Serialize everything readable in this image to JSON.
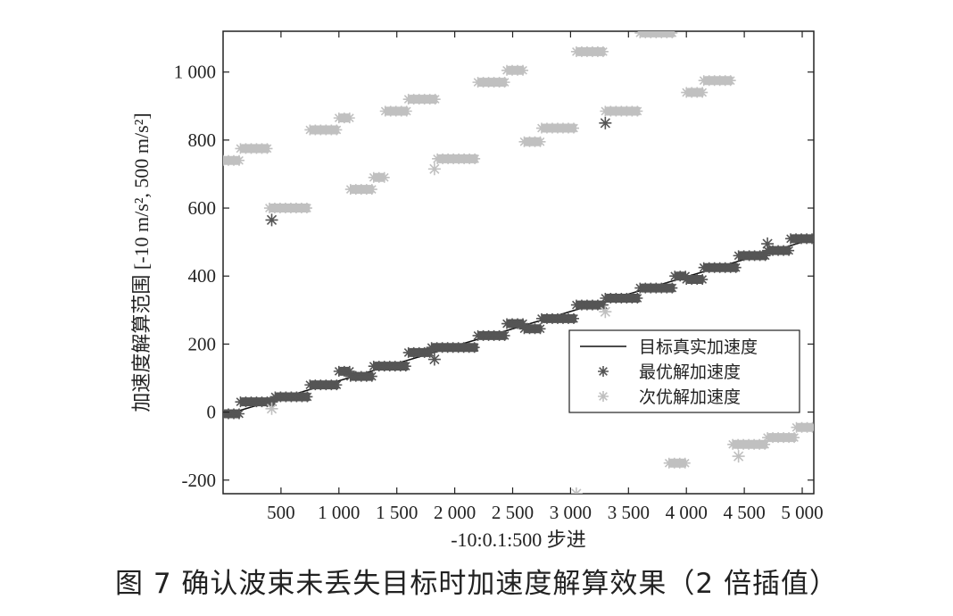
{
  "caption": "图 7 确认波束未丢失目标时加速度解算效果（2 倍插值）",
  "chart_data": {
    "type": "scatter",
    "xlabel": "-10:0.1:500 步进",
    "ylabel": "加速度解算范围 [-10 m/s², 500 m/s²]",
    "xlim": [
      0,
      5100
    ],
    "ylim": [
      -240,
      1120
    ],
    "xticks": [
      500,
      1000,
      1500,
      2000,
      2500,
      3000,
      3500,
      4000,
      4500,
      5000
    ],
    "xtick_labels": [
      "500",
      "1 000",
      "1 500",
      "2 000",
      "2 500",
      "3 000",
      "3 500",
      "4 000",
      "4 500",
      "5 000"
    ],
    "yticks": [
      -200,
      0,
      200,
      400,
      600,
      800,
      1000
    ],
    "ytick_labels": [
      "-200",
      "0",
      "200",
      "400",
      "600",
      "800",
      "1 000"
    ],
    "grid": false,
    "legend_position": "center-right",
    "series": [
      {
        "name": "目标真实加速度",
        "style": "line",
        "color": "#111111",
        "x": [
          0,
          5100
        ],
        "y": [
          -10,
          510
        ]
      },
      {
        "name": "最优解加速度",
        "style": "star",
        "color": "#555555",
        "segments": [
          {
            "x0": 0,
            "x1": 150,
            "y": -5
          },
          {
            "x0": 150,
            "x1": 450,
            "y": 30
          },
          {
            "x0": 450,
            "x1": 750,
            "y": 45
          },
          {
            "x0": 750,
            "x1": 1000,
            "y": 80
          },
          {
            "x0": 1000,
            "x1": 1100,
            "y": 120
          },
          {
            "x0": 1100,
            "x1": 1300,
            "y": 105
          },
          {
            "x0": 1300,
            "x1": 1600,
            "y": 135
          },
          {
            "x0": 1600,
            "x1": 1800,
            "y": 175
          },
          {
            "x0": 1800,
            "x1": 2200,
            "y": 190
          },
          {
            "x0": 2200,
            "x1": 2450,
            "y": 225
          },
          {
            "x0": 2450,
            "x1": 2600,
            "y": 260
          },
          {
            "x0": 2600,
            "x1": 2750,
            "y": 245
          },
          {
            "x0": 2750,
            "x1": 3050,
            "y": 275
          },
          {
            "x0": 3050,
            "x1": 3300,
            "y": 315
          },
          {
            "x0": 3300,
            "x1": 3600,
            "y": 335
          },
          {
            "x0": 3600,
            "x1": 3900,
            "y": 365
          },
          {
            "x0": 3900,
            "x1": 4000,
            "y": 400
          },
          {
            "x0": 4000,
            "x1": 4150,
            "y": 390
          },
          {
            "x0": 4150,
            "x1": 4450,
            "y": 425
          },
          {
            "x0": 4450,
            "x1": 4700,
            "y": 460
          },
          {
            "x0": 4700,
            "x1": 4900,
            "y": 475
          },
          {
            "x0": 4900,
            "x1": 5100,
            "y": 510
          }
        ],
        "outliers": [
          {
            "x": 420,
            "y": 565
          },
          {
            "x": 3300,
            "y": 850
          },
          {
            "x": 1825,
            "y": 155
          },
          {
            "x": 4700,
            "y": 495
          }
        ]
      },
      {
        "name": "次优解加速度",
        "style": "star",
        "color": "#c0c0c0",
        "segments": [
          {
            "x0": 0,
            "x1": 150,
            "y": 740
          },
          {
            "x0": 150,
            "x1": 400,
            "y": 775
          },
          {
            "x0": 400,
            "x1": 750,
            "y": 600
          },
          {
            "x0": 750,
            "x1": 1000,
            "y": 830
          },
          {
            "x0": 1000,
            "x1": 1100,
            "y": 865
          },
          {
            "x0": 1100,
            "x1": 1300,
            "y": 655
          },
          {
            "x0": 1300,
            "x1": 1400,
            "y": 690
          },
          {
            "x0": 1400,
            "x1": 1600,
            "y": 885
          },
          {
            "x0": 1600,
            "x1": 1850,
            "y": 920
          },
          {
            "x0": 1850,
            "x1": 2200,
            "y": 745
          },
          {
            "x0": 2200,
            "x1": 2450,
            "y": 970
          },
          {
            "x0": 2450,
            "x1": 2600,
            "y": 1005
          },
          {
            "x0": 2600,
            "x1": 2750,
            "y": 795
          },
          {
            "x0": 2750,
            "x1": 3050,
            "y": 835
          },
          {
            "x0": 3050,
            "x1": 3300,
            "y": 1060
          },
          {
            "x0": 3300,
            "x1": 3600,
            "y": 885
          },
          {
            "x0": 3600,
            "x1": 3900,
            "y": 1115
          },
          {
            "x0": 3850,
            "x1": 4000,
            "y": -150
          },
          {
            "x0": 4000,
            "x1": 4150,
            "y": 940
          },
          {
            "x0": 4150,
            "x1": 4400,
            "y": 975
          },
          {
            "x0": 4400,
            "x1": 4700,
            "y": -95
          },
          {
            "x0": 4700,
            "x1": 4950,
            "y": -75
          },
          {
            "x0": 4950,
            "x1": 5100,
            "y": -45
          }
        ],
        "outliers": [
          {
            "x": 420,
            "y": 10
          },
          {
            "x": 1825,
            "y": 715
          },
          {
            "x": 3050,
            "y": -240
          },
          {
            "x": 3300,
            "y": 295
          },
          {
            "x": 4450,
            "y": -130
          }
        ]
      }
    ]
  }
}
